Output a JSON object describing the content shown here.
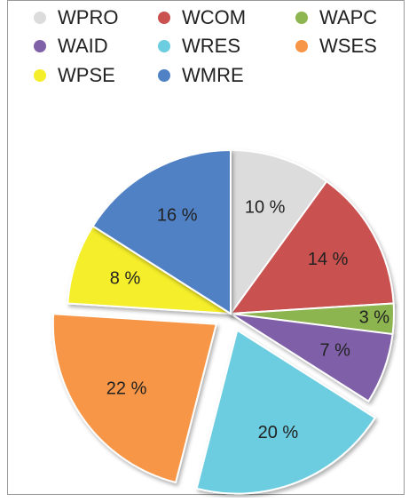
{
  "chart_data": {
    "type": "pie",
    "categories": [
      "WPRO",
      "WCOM",
      "WAPC",
      "WAID",
      "WRES",
      "WSES",
      "WPSE",
      "WMRE"
    ],
    "values": [
      10,
      14,
      3,
      7,
      20,
      22,
      8,
      16
    ],
    "value_labels": [
      "10 %",
      "14 %",
      "3 %",
      "7 %",
      "20 %",
      "22 %",
      "8 %",
      "16 %"
    ],
    "colors": [
      "#dcdcdc",
      "#c9514f",
      "#8db550",
      "#7f61a8",
      "#6ccde0",
      "#f79646",
      "#f5ee2a",
      "#4f81c4"
    ],
    "exploded": [
      "WRES",
      "WSES"
    ],
    "legend": "top"
  }
}
